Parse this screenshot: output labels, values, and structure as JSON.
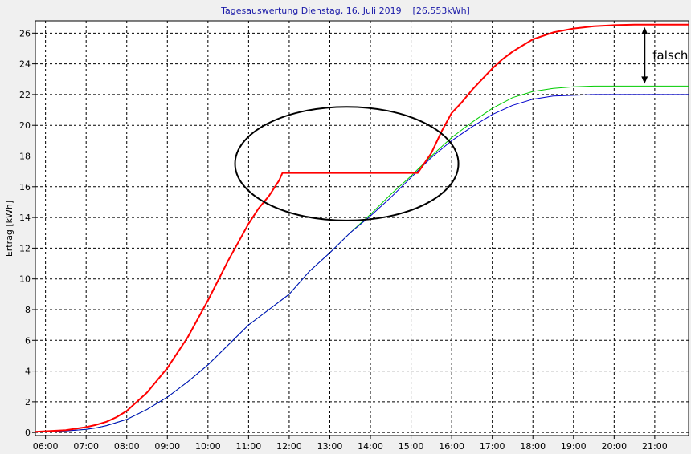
{
  "chart_data": {
    "type": "line",
    "title": "Tagesauswertung Dienstag, 16. Juli 2019    [26,553kWh]",
    "xlabel": "",
    "ylabel": "Ertrag [kWh]",
    "x_ticks": [
      "06:00",
      "07:00",
      "08:00",
      "09:00",
      "10:00",
      "11:00",
      "12:00",
      "13:00",
      "14:00",
      "15:00",
      "16:00",
      "17:00",
      "18:00",
      "19:00",
      "20:00",
      "21:00"
    ],
    "y_ticks": [
      "0",
      "2",
      "4",
      "6",
      "8",
      "10",
      "12",
      "14",
      "16",
      "18",
      "20",
      "22",
      "24",
      "26"
    ],
    "xlim": [
      "05:45",
      "21:50"
    ],
    "ylim": [
      -0.2,
      26.8
    ],
    "grid": true,
    "colors": {
      "red": "#ff0000",
      "green": "#00cc00",
      "blue": "#0000cc"
    },
    "series": [
      {
        "color": "#ff0000",
        "x": [
          "05:45",
          "06:30",
          "06:45",
          "07:00",
          "07:15",
          "07:30",
          "07:45",
          "08:00",
          "08:30",
          "09:00",
          "09:30",
          "10:00",
          "10:30",
          "11:00",
          "11:15",
          "11:30",
          "11:45",
          "11:50",
          "12:00",
          "13:00",
          "14:00",
          "15:00",
          "15:10",
          "15:30",
          "15:45",
          "16:00",
          "16:15",
          "16:30",
          "16:45",
          "17:00",
          "17:15",
          "17:30",
          "17:45",
          "18:00",
          "18:30",
          "19:00",
          "19:30",
          "20:00",
          "20:30",
          "21:00",
          "21:50"
        ],
        "y": [
          0.05,
          0.15,
          0.25,
          0.35,
          0.5,
          0.7,
          1.0,
          1.4,
          2.6,
          4.2,
          6.2,
          8.6,
          11.2,
          13.6,
          14.6,
          15.4,
          16.4,
          16.9,
          16.9,
          16.9,
          16.9,
          16.9,
          16.9,
          18.2,
          19.6,
          20.8,
          21.5,
          22.3,
          23.0,
          23.7,
          24.3,
          24.8,
          25.2,
          25.6,
          26.05,
          26.3,
          26.45,
          26.52,
          26.55,
          26.55,
          26.55
        ]
      },
      {
        "color": "#00cc00",
        "x": [
          "05:45",
          "06:30",
          "07:00",
          "07:15",
          "07:30",
          "08:00",
          "08:30",
          "09:00",
          "09:30",
          "10:00",
          "10:30",
          "11:00",
          "11:30",
          "12:00",
          "12:30",
          "13:00",
          "13:30",
          "14:00",
          "14:30",
          "15:00",
          "15:30",
          "16:00",
          "16:30",
          "17:00",
          "17:30",
          "18:00",
          "18:30",
          "19:00",
          "19:30",
          "20:00",
          "20:30",
          "21:00",
          "21:50"
        ],
        "y": [
          0.05,
          0.1,
          0.2,
          0.3,
          0.45,
          0.85,
          1.5,
          2.3,
          3.3,
          4.4,
          5.7,
          7.0,
          8.0,
          9.0,
          10.5,
          11.7,
          13.0,
          14.2,
          15.5,
          16.7,
          18.0,
          19.2,
          20.2,
          21.1,
          21.8,
          22.2,
          22.4,
          22.5,
          22.55,
          22.55,
          22.55,
          22.55,
          22.55
        ]
      },
      {
        "color": "#0000cc",
        "x": [
          "05:45",
          "06:30",
          "07:00",
          "07:15",
          "07:30",
          "08:00",
          "08:30",
          "09:00",
          "09:30",
          "10:00",
          "10:30",
          "11:00",
          "11:30",
          "12:00",
          "12:30",
          "13:00",
          "13:30",
          "14:00",
          "14:30",
          "15:00",
          "15:30",
          "16:00",
          "16:30",
          "17:00",
          "17:30",
          "18:00",
          "18:30",
          "19:00",
          "19:30",
          "20:00",
          "20:30",
          "21:00",
          "21:50"
        ],
        "y": [
          0.05,
          0.1,
          0.2,
          0.3,
          0.45,
          0.85,
          1.5,
          2.3,
          3.3,
          4.4,
          5.7,
          7.0,
          8.0,
          9.0,
          10.5,
          11.7,
          13.0,
          14.1,
          15.3,
          16.6,
          17.9,
          19.0,
          19.9,
          20.7,
          21.3,
          21.7,
          21.9,
          21.95,
          22.0,
          22.0,
          22.0,
          22.0,
          22.0
        ]
      }
    ],
    "annotations": [
      {
        "type": "ellipse",
        "center": [
          "13:25",
          17.5
        ],
        "rx_hours": 2.75,
        "ry": 3.7
      },
      {
        "type": "double-arrow",
        "x": "20:45",
        "from": 26.55,
        "to": 22.55,
        "label": "falsch"
      }
    ]
  }
}
